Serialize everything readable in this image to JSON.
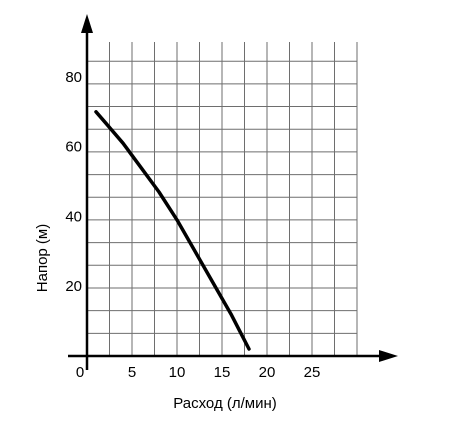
{
  "chart_data": {
    "type": "line",
    "xlabel": "Расход (л/мин)",
    "ylabel": "Напор (м)",
    "origin_label": "0",
    "xlim": [
      0,
      30
    ],
    "ylim": [
      0,
      90
    ],
    "x_ticks": [
      5,
      10,
      15,
      20,
      25
    ],
    "x_tick_labels": [
      "5",
      "10",
      "15",
      "20",
      "25"
    ],
    "y_ticks": [
      20,
      40,
      60,
      80
    ],
    "y_tick_labels": [
      "20",
      "40",
      "60",
      "80"
    ],
    "x_grid_step": 2.5,
    "y_grid_step": 6.5,
    "grid": true,
    "series": [
      {
        "x": [
          1,
          2,
          4,
          6,
          8,
          10,
          12,
          14,
          16,
          17,
          18
        ],
        "y": [
          70,
          67,
          61,
          54,
          47,
          39,
          30,
          21,
          12,
          7,
          2
        ],
        "color": "#000000"
      }
    ]
  }
}
